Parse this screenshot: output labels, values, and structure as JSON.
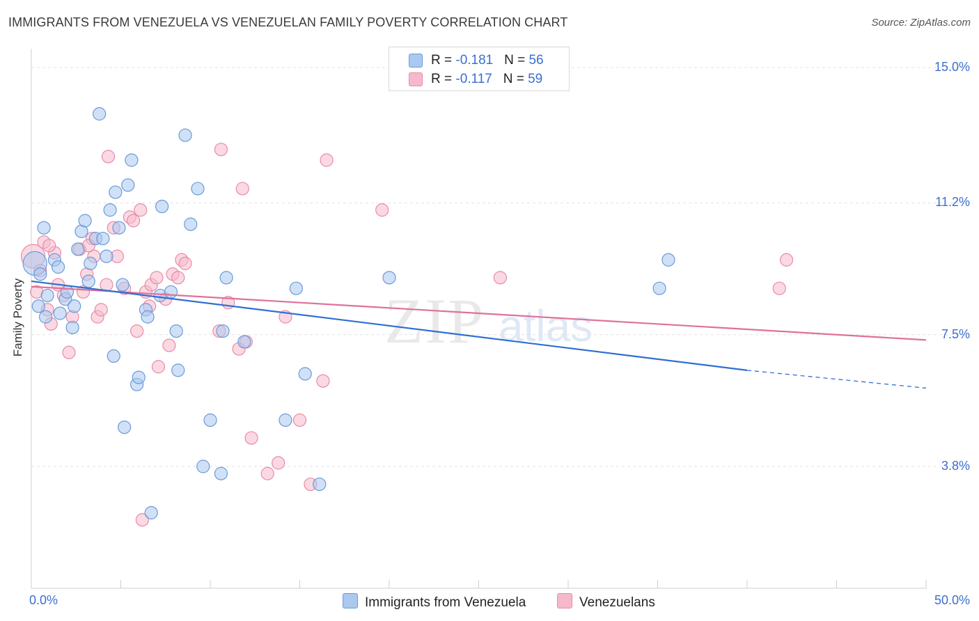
{
  "title": "IMMIGRANTS FROM VENEZUELA VS VENEZUELAN FAMILY POVERTY CORRELATION CHART",
  "source": "Source: ZipAtlas.com",
  "watermark": {
    "zip": "ZIP",
    "atlas": "atlas"
  },
  "colors": {
    "blue_fill": "#aac8f0",
    "blue_stroke": "#6a9ad8",
    "blue_line": "#2f6fd0",
    "pink_fill": "#f6b9cc",
    "pink_stroke": "#e88aa8",
    "pink_line": "#e0709a",
    "axis_text": "#3a6fd0",
    "grid": "#e2e2e2"
  },
  "legend_top": {
    "rows": [
      {
        "r_label": "R = ",
        "r_value": "-0.181",
        "n_label": "N = ",
        "n_value": "56",
        "color": "#aac8f0",
        "stroke": "#6a9ad8"
      },
      {
        "r_label": "R = ",
        "r_value": "-0.117",
        "n_label": "N = ",
        "n_value": "59",
        "color": "#f6b9cc",
        "stroke": "#e88aa8"
      }
    ]
  },
  "legend_bottom": [
    {
      "label": "Immigrants from Venezuela",
      "color": "#aac8f0",
      "stroke": "#6a9ad8"
    },
    {
      "label": "Venezuelans",
      "color": "#f6b9cc",
      "stroke": "#e88aa8"
    }
  ],
  "chart_data": {
    "type": "scatter",
    "title": "IMMIGRANTS FROM VENEZUELA VS VENEZUELAN FAMILY POVERTY CORRELATION CHART",
    "xlabel": "",
    "ylabel": "Family Poverty",
    "xlim": [
      0,
      50
    ],
    "ylim": [
      0,
      16.5
    ],
    "x_tick_labels": [
      "0.0%",
      "50.0%"
    ],
    "y_ticks": [
      3.8,
      7.5,
      11.2,
      15.0
    ],
    "y_tick_labels": [
      "3.8%",
      "7.5%",
      "11.2%",
      "15.0%"
    ],
    "grid": "horizontal dashed",
    "legend_position": "top-center",
    "series": [
      {
        "name": "Immigrants from Venezuela",
        "R": -0.181,
        "N": 56,
        "trend": {
          "x0": 0,
          "y0": 9.0,
          "x1": 40,
          "y1": 6.5,
          "dash_to": 50,
          "dash_y": 6.0
        },
        "points": [
          [
            0.2,
            9.5,
            "L"
          ],
          [
            0.5,
            9.2
          ],
          [
            0.4,
            8.3
          ],
          [
            0.8,
            8.0
          ],
          [
            0.9,
            8.6
          ],
          [
            0.7,
            10.5
          ],
          [
            1.3,
            9.6
          ],
          [
            1.5,
            9.4
          ],
          [
            1.6,
            8.1
          ],
          [
            1.9,
            8.5
          ],
          [
            2.0,
            8.7
          ],
          [
            2.3,
            7.7
          ],
          [
            2.4,
            8.3
          ],
          [
            2.6,
            9.9
          ],
          [
            2.8,
            10.4
          ],
          [
            3.0,
            10.7
          ],
          [
            3.2,
            9.0
          ],
          [
            3.3,
            9.5
          ],
          [
            3.6,
            10.2
          ],
          [
            3.8,
            13.7
          ],
          [
            4.0,
            10.2
          ],
          [
            4.2,
            9.7
          ],
          [
            4.4,
            11.0
          ],
          [
            4.6,
            6.9
          ],
          [
            4.7,
            11.5
          ],
          [
            4.9,
            10.5
          ],
          [
            5.1,
            8.9
          ],
          [
            5.2,
            4.9
          ],
          [
            5.4,
            11.7
          ],
          [
            5.6,
            12.4
          ],
          [
            5.9,
            6.1
          ],
          [
            6.0,
            6.3
          ],
          [
            6.4,
            8.2
          ],
          [
            6.5,
            8.0
          ],
          [
            6.7,
            2.5
          ],
          [
            7.2,
            8.6
          ],
          [
            7.3,
            11.1
          ],
          [
            7.8,
            8.7
          ],
          [
            8.1,
            7.6
          ],
          [
            8.2,
            6.5
          ],
          [
            8.6,
            13.1
          ],
          [
            8.9,
            10.6
          ],
          [
            9.3,
            11.6
          ],
          [
            9.6,
            3.8
          ],
          [
            10.0,
            5.1
          ],
          [
            10.6,
            3.6
          ],
          [
            10.7,
            7.6
          ],
          [
            10.9,
            9.1
          ],
          [
            11.9,
            7.3
          ],
          [
            14.2,
            5.1
          ],
          [
            14.8,
            8.8
          ],
          [
            15.3,
            6.4
          ],
          [
            16.1,
            3.3
          ],
          [
            20.0,
            9.1
          ],
          [
            35.1,
            8.8
          ],
          [
            35.6,
            9.6
          ]
        ]
      },
      {
        "name": "Venezuelans",
        "R": -0.117,
        "N": 59,
        "trend": {
          "x0": 0,
          "y0": 8.85,
          "x1": 50,
          "y1": 7.35
        },
        "points": [
          [
            0.1,
            9.7,
            "L"
          ],
          [
            0.3,
            8.7
          ],
          [
            0.5,
            9.3
          ],
          [
            0.7,
            10.1
          ],
          [
            0.9,
            8.2
          ],
          [
            1.1,
            7.8
          ],
          [
            1.3,
            9.8
          ],
          [
            1.5,
            8.9
          ],
          [
            1.8,
            8.6
          ],
          [
            2.1,
            7.0
          ],
          [
            2.3,
            8.0
          ],
          [
            2.7,
            9.9
          ],
          [
            2.9,
            8.7
          ],
          [
            3.1,
            9.2
          ],
          [
            3.4,
            10.2
          ],
          [
            3.5,
            9.7
          ],
          [
            3.7,
            8.0
          ],
          [
            3.9,
            8.2
          ],
          [
            4.2,
            8.9
          ],
          [
            4.3,
            12.5
          ],
          [
            4.6,
            10.5
          ],
          [
            4.8,
            9.7
          ],
          [
            5.2,
            8.8
          ],
          [
            5.5,
            10.8
          ],
          [
            5.7,
            10.7
          ],
          [
            5.9,
            7.6
          ],
          [
            6.1,
            11.0
          ],
          [
            6.4,
            8.7
          ],
          [
            6.6,
            8.3
          ],
          [
            6.7,
            8.9
          ],
          [
            7.0,
            9.1
          ],
          [
            7.1,
            6.6
          ],
          [
            7.5,
            8.5
          ],
          [
            7.7,
            7.2
          ],
          [
            7.9,
            9.2
          ],
          [
            8.2,
            9.1
          ],
          [
            8.4,
            9.6
          ],
          [
            8.6,
            9.5
          ],
          [
            10.5,
            7.6
          ],
          [
            10.6,
            12.7
          ],
          [
            11.0,
            8.4
          ],
          [
            11.6,
            7.1
          ],
          [
            11.8,
            11.6
          ],
          [
            12.0,
            7.3
          ],
          [
            12.3,
            4.6
          ],
          [
            13.2,
            3.6
          ],
          [
            13.8,
            3.9
          ],
          [
            14.2,
            8.0
          ],
          [
            15.0,
            5.1
          ],
          [
            15.6,
            3.3
          ],
          [
            16.3,
            6.2
          ],
          [
            16.5,
            12.4
          ],
          [
            19.6,
            11.0
          ],
          [
            26.2,
            9.1
          ],
          [
            41.8,
            8.8
          ],
          [
            42.2,
            9.6
          ],
          [
            6.2,
            2.3
          ],
          [
            3.2,
            10.0
          ],
          [
            1.0,
            10.0
          ]
        ]
      }
    ]
  }
}
